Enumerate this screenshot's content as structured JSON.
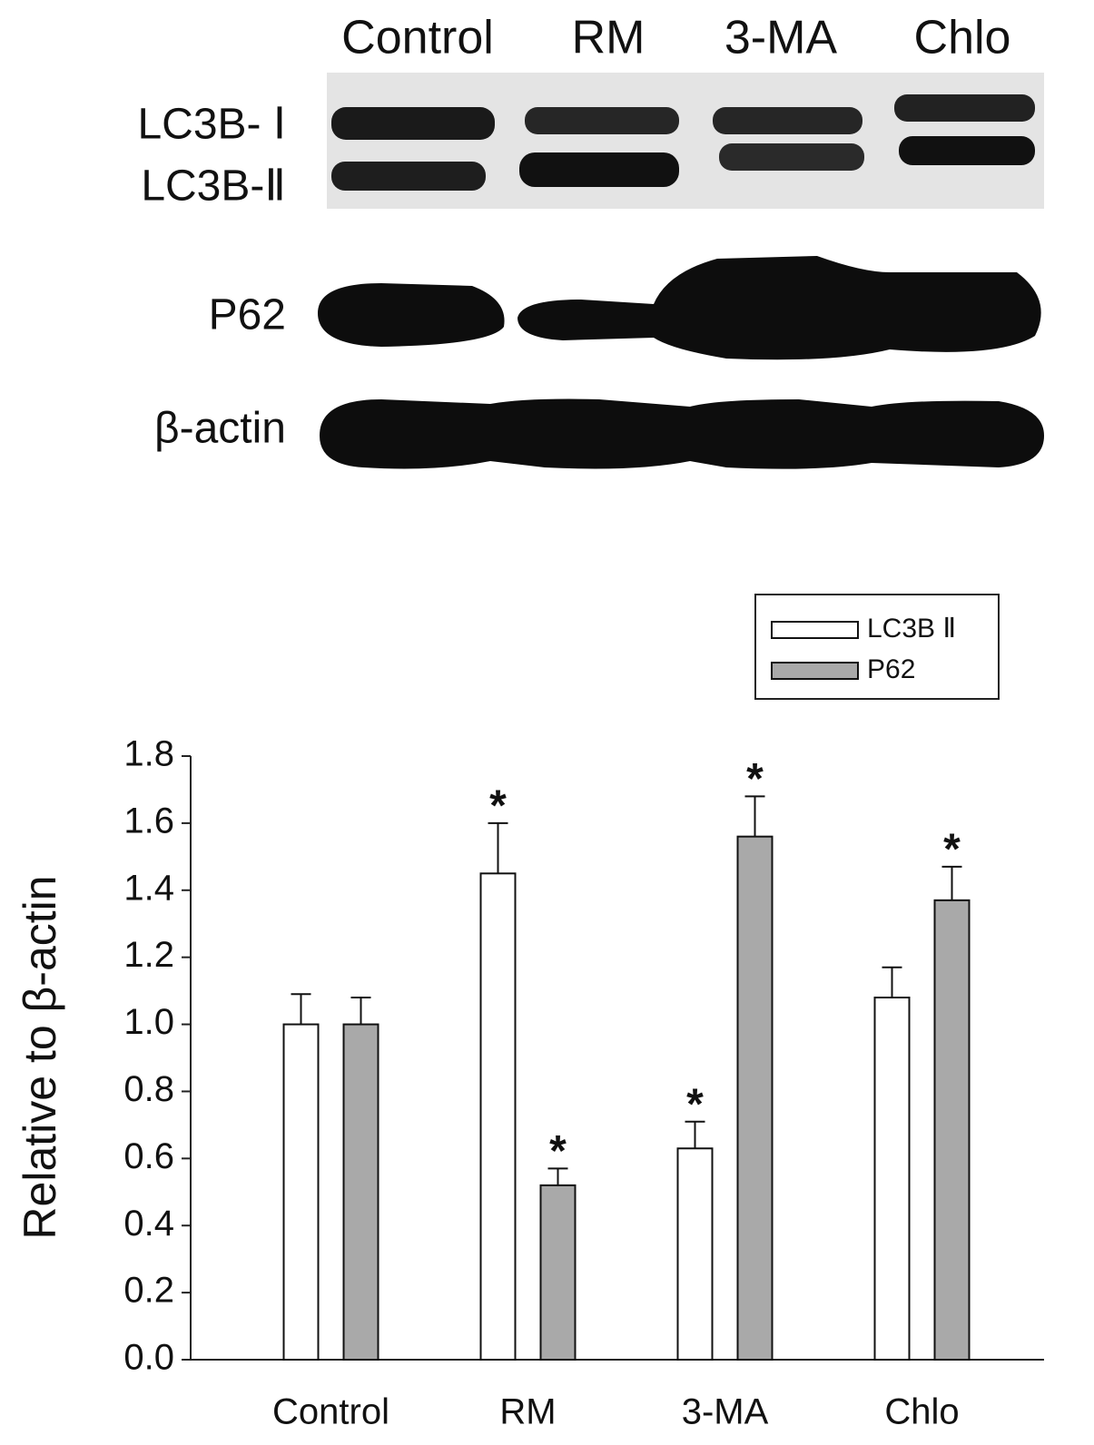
{
  "blot": {
    "lanes": [
      "Control",
      "RM",
      "3-MA",
      "Chlo"
    ],
    "rows": [
      "LC3B- Ⅰ",
      "LC3B-Ⅱ",
      "P62",
      "β-actin"
    ]
  },
  "chart_data": {
    "type": "bar",
    "ylabel": "Relative to β-actin",
    "categories": [
      "Control",
      "RM",
      "3-MA",
      "Chlo"
    ],
    "series": [
      {
        "name": "LC3B Ⅱ",
        "color": "#ffffff",
        "values": [
          1.0,
          1.45,
          0.63,
          1.08
        ],
        "errors": [
          0.09,
          0.15,
          0.08,
          0.09
        ],
        "markers": [
          null,
          "*",
          "*",
          null
        ]
      },
      {
        "name": "P62",
        "color": "#a9a9a9",
        "values": [
          1.0,
          0.52,
          1.56,
          1.37
        ],
        "errors": [
          0.08,
          0.05,
          0.12,
          0.1
        ],
        "markers": [
          null,
          "*",
          "*",
          "*"
        ]
      }
    ],
    "ylim": [
      0,
      1.8
    ],
    "yticks": [
      {
        "value": 0,
        "label": "0.0"
      },
      0.2,
      0.4,
      0.6,
      0.8,
      {
        "value": 1,
        "label": "1.0"
      },
      1.2,
      1.4,
      1.6,
      1.8
    ],
    "legend": "top-right"
  }
}
